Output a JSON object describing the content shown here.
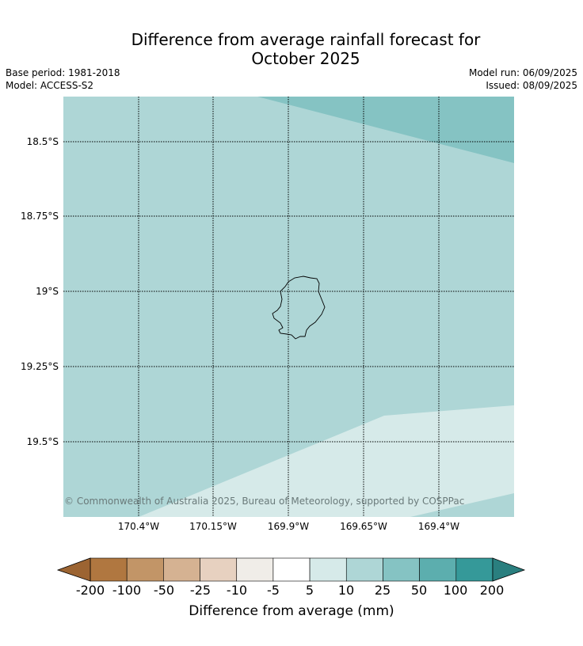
{
  "header": {
    "title_line1": "Difference from average rainfall forecast for",
    "title_line2": "October 2025",
    "base_period": "Base period: 1981-2018",
    "model": "Model: ACCESS-S2",
    "model_run": "Model run: 06/09/2025",
    "issued": "Issued: 08/09/2025"
  },
  "map": {
    "region": "Niue",
    "lat_labels": [
      "18.5°S",
      "18.75°S",
      "19°S",
      "19.25°S",
      "19.5°S"
    ],
    "lon_labels": [
      "170.4°W",
      "170.15°W",
      "169.9°W",
      "169.65°W",
      "169.4°W"
    ],
    "fill_colors": {
      "band_25_50": "#aed6d6",
      "band_50_100": "#85c3c3",
      "band_10_25": "#d6eae9"
    },
    "copyright": "© Commonwealth of Australia 2025, Bureau of Meteorology, supported by COSPPac"
  },
  "colorbar": {
    "title": "Difference from average (mm)",
    "ticks": [
      "-200",
      "-100",
      "-50",
      "-25",
      "-10",
      "-5",
      "5",
      "10",
      "25",
      "50",
      "100",
      "200"
    ],
    "under_color": "#9c6432",
    "over_color": "#2a7f7f",
    "colors": [
      "#b07740",
      "#c29567",
      "#d5b292",
      "#e7d1c0",
      "#f0ede8",
      "#ffffff",
      "#d6eae9",
      "#aed6d6",
      "#85c3c3",
      "#5caeae",
      "#359999"
    ]
  }
}
